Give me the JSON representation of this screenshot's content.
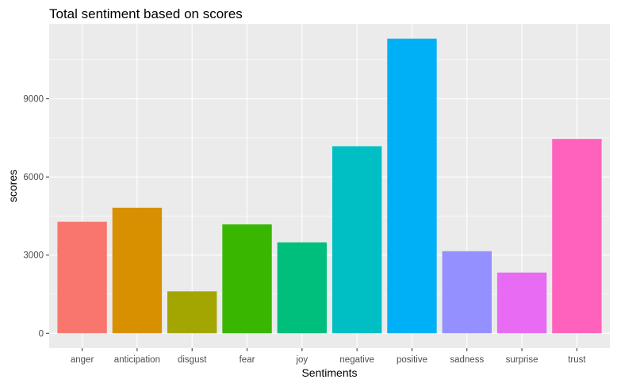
{
  "chart_data": {
    "type": "bar",
    "title": "Total sentiment based on scores",
    "xlabel": "Sentiments",
    "ylabel": "scores",
    "categories": [
      "anger",
      "anticipation",
      "disgust",
      "fear",
      "joy",
      "negative",
      "positive",
      "sadness",
      "surprise",
      "trust"
    ],
    "values": [
      4280,
      4820,
      1610,
      4180,
      3490,
      7180,
      11310,
      3150,
      2330,
      7460
    ],
    "colors": [
      "#F8766D",
      "#D89000",
      "#A3A500",
      "#39B600",
      "#00BF7D",
      "#00BFC4",
      "#00B0F6",
      "#9590FF",
      "#E76BF3",
      "#FF62BC"
    ],
    "yticks": [
      0,
      3000,
      6000,
      9000
    ],
    "ytick_labels": [
      "0",
      "3000",
      "6000",
      "9000"
    ],
    "ylim": [
      -570,
      11880
    ],
    "grid": true,
    "legend": "none",
    "panel_background": "#EBEBEB",
    "grid_color": "#FFFFFF"
  }
}
